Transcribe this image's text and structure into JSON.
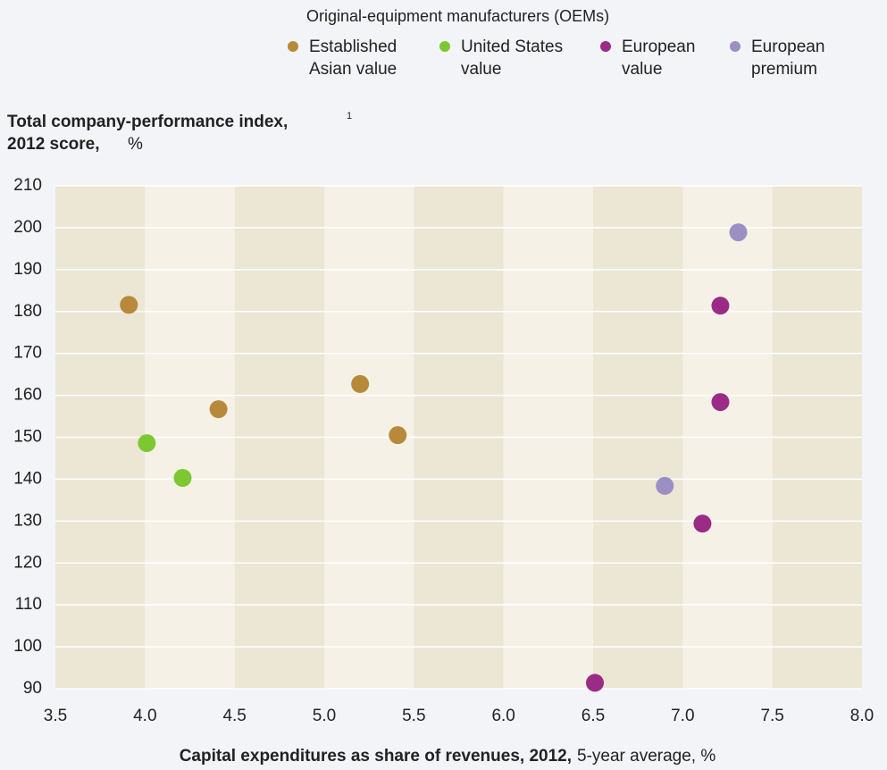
{
  "chart_data": {
    "type": "scatter",
    "legend_title": "Original-equipment manufacturers (OEMs)",
    "y_label": {
      "bold": [
        "Total company-performance index,",
        "2012 score,"
      ],
      "note": "1",
      "unit": "%"
    },
    "x_label": {
      "bold": "Capital expenditures as share of revenues, 2012,",
      "rest": "5-year average, %"
    },
    "xlim": [
      3.5,
      8.0
    ],
    "xticks": [
      3.5,
      {
        "value": 4,
        "label": "4.0"
      },
      4.5,
      {
        "value": 5,
        "label": "5.0"
      },
      5.5,
      {
        "value": 6,
        "label": "6.0"
      },
      6.5,
      {
        "value": 7,
        "label": "7.0"
      },
      7.5,
      {
        "value": 8,
        "label": "8.0"
      }
    ],
    "ylim": [
      90,
      210
    ],
    "yticks": [
      90,
      100,
      110,
      120,
      130,
      140,
      150,
      160,
      170,
      180,
      190,
      200,
      210
    ],
    "grid": true,
    "series": [
      {
        "name": "Established Asian value",
        "color": "#b8893a",
        "x": [
          3.91,
          4.41,
          5.2,
          5.41
        ],
        "values": [
          181.6,
          156.7,
          162.7,
          150.5
        ]
      },
      {
        "name": "United States value",
        "color": "#7dc832",
        "x": [
          4.01,
          4.21
        ],
        "values": [
          148.6,
          140.3
        ]
      },
      {
        "name": "European value",
        "color": "#9b2c86",
        "x": [
          7.21,
          7.21,
          7.11,
          6.51
        ],
        "values": [
          181.4,
          158.4,
          129.4,
          91.4
        ]
      },
      {
        "name": "European premium",
        "color": "#9b8fc4",
        "x": [
          7.31,
          6.9
        ],
        "values": [
          198.9,
          138.4
        ]
      }
    ]
  }
}
